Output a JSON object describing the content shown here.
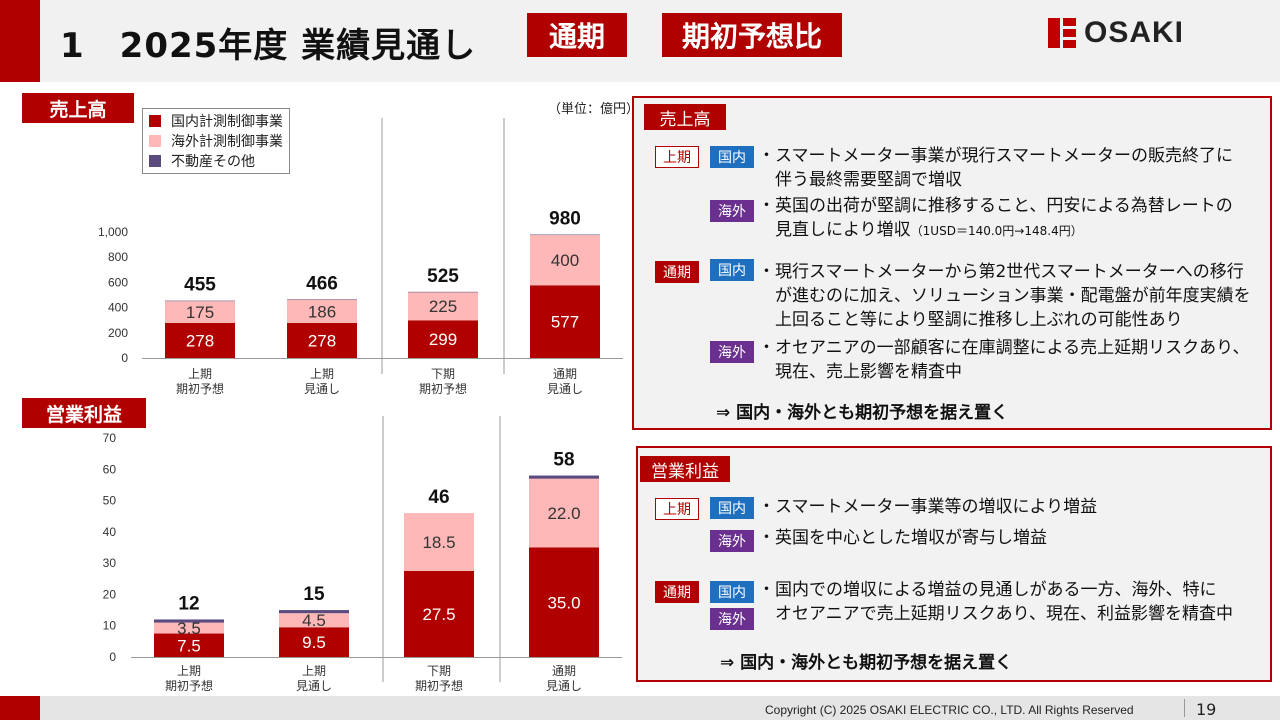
{
  "header": {
    "title": "1　2025年度 業績見通し",
    "tag1": "通期",
    "tag2": "期初予想比",
    "logo_text": "OSAKI"
  },
  "unit_label": "（単位：億円）",
  "colors": {
    "accent_red": "#b00000",
    "domestic": "#b00000",
    "overseas": "#ffb8b8",
    "other": "#5b4a7e",
    "blue_tag": "#1f6fbf",
    "purple_tag": "#6b2f8f"
  },
  "chart_data": [
    {
      "type": "bar",
      "title": "売上高",
      "stacked": true,
      "categories": [
        "上期\n期初予想",
        "上期\n見通し",
        "下期\n期初予想",
        "通期\n見通し"
      ],
      "series": [
        {
          "name": "国内計測制御事業",
          "values": [
            278,
            278,
            299,
            577
          ]
        },
        {
          "name": "海外計測制御事業",
          "values": [
            175,
            186,
            225,
            400
          ]
        },
        {
          "name": "不動産その他",
          "values": [
            2,
            2,
            1,
            3
          ]
        }
      ],
      "segment_labels": [
        [
          "278",
          "175"
        ],
        [
          "278",
          "186"
        ],
        [
          "299",
          "225"
        ],
        [
          "577",
          "400"
        ]
      ],
      "totals": [
        "455",
        "466",
        "525",
        "980"
      ],
      "yticks": [
        "0",
        "200",
        "400",
        "600",
        "800",
        "1,000"
      ],
      "ylim": [
        0,
        1000
      ],
      "grid": false,
      "legend": "top-left"
    },
    {
      "type": "bar",
      "title": "営業利益",
      "stacked": true,
      "categories": [
        "上期\n期初予想",
        "上期\n見通し",
        "下期\n期初予想",
        "通期\n見通し"
      ],
      "series": [
        {
          "name": "国内計測制御事業",
          "values": [
            7.5,
            9.5,
            27.5,
            35.0
          ]
        },
        {
          "name": "海外計測制御事業",
          "values": [
            3.5,
            4.5,
            18.5,
            22.0
          ]
        },
        {
          "name": "不動産その他",
          "values": [
            1.0,
            1.0,
            0,
            1.0
          ]
        }
      ],
      "segment_labels": [
        [
          "7.5",
          "3.5"
        ],
        [
          "9.5",
          "4.5"
        ],
        [
          "27.5",
          "18.5"
        ],
        [
          "35.0",
          "22.0"
        ]
      ],
      "totals": [
        "12",
        "15",
        "46",
        "58"
      ],
      "yticks": [
        "0",
        "10",
        "20",
        "30",
        "40",
        "50",
        "60",
        "70"
      ],
      "ylim": [
        0,
        70
      ],
      "grid": false
    }
  ],
  "sales_box": {
    "title": "売上高",
    "conclusion": "⇒ 国内・海外とも期初予想を据え置く",
    "groups": [
      {
        "period": "上期",
        "items": [
          {
            "region": "国内",
            "lines": [
              "・スマートメーター事業が現行スマートメーターの販売終了に",
              "　伴う最終需要堅調で増収"
            ]
          },
          {
            "region": "海外",
            "lines": [
              "・英国の出荷が堅調に推移すること、円安による為替レートの",
              "　見直しにより増収"
            ],
            "note": "（1USD＝140.0円→148.4円）"
          }
        ]
      },
      {
        "period": "通期",
        "items": [
          {
            "region": "国内",
            "lines": [
              "・現行スマートメーターから第2世代スマートメーターへの移行",
              "　が進むのに加え、ソリューション事業・配電盤が前年度実績を",
              "　上回ること等により堅調に推移し上ぶれの可能性あり"
            ]
          },
          {
            "region": "海外",
            "lines": [
              "・オセアニアの一部顧客に在庫調整による売上延期リスクあり、",
              "　現在、売上影響を精査中"
            ]
          }
        ]
      }
    ]
  },
  "profit_box": {
    "title": "営業利益",
    "conclusion": "⇒ 国内・海外とも期初予想を据え置く",
    "groups": [
      {
        "period": "上期",
        "items": [
          {
            "region": "国内",
            "lines": [
              "・スマートメーター事業等の増収により増益"
            ]
          },
          {
            "region": "海外",
            "lines": [
              "・英国を中心とした増収が寄与し増益"
            ]
          }
        ]
      },
      {
        "period": "通期",
        "regions": [
          "国内",
          "海外"
        ],
        "lines": [
          "・国内での増収による増益の見通しがある一方、海外、特に",
          "　オセアニアで売上延期リスクあり、現在、利益影響を精査中"
        ]
      }
    ]
  },
  "footer": {
    "copyright": "Copyright (C) 2025 OSAKI ELECTRIC CO., LTD. All Rights Reserved",
    "page": "19"
  }
}
